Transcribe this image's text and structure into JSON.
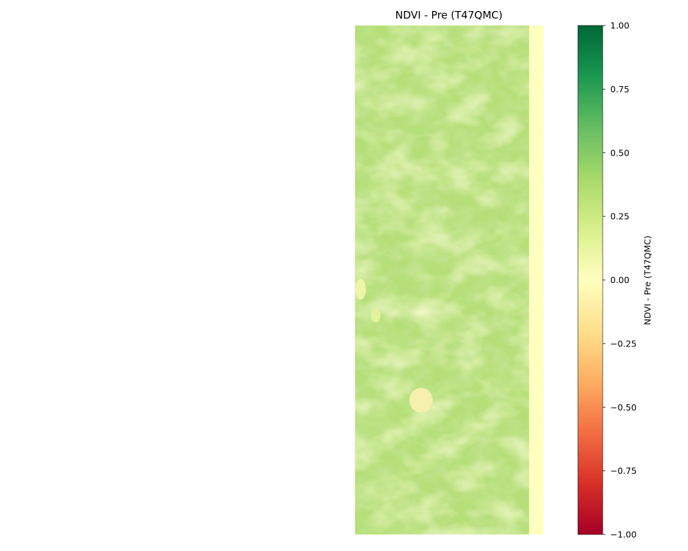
{
  "chart_data": {
    "type": "heatmap",
    "title": "NDVI - Pre (T47QMC)",
    "colorbar": {
      "label": "NDVI - Pre (T47QMC)",
      "colormap": "RdYlGn",
      "vmin": -1.0,
      "vmax": 1.0,
      "ticks": [
        1.0,
        0.75,
        0.5,
        0.25,
        0.0,
        -0.25,
        -0.5,
        -0.75,
        -1.0
      ],
      "tick_labels": [
        "1.00",
        "0.75",
        "0.50",
        "0.25",
        "0.00",
        "−0.25",
        "−0.50",
        "−0.75",
        "−1.00"
      ],
      "colors": [
        "#a50026",
        "#d73027",
        "#f46d43",
        "#fdae61",
        "#fee08b",
        "#ffffbf",
        "#d9ef8b",
        "#a6d96a",
        "#66bd63",
        "#1a9850",
        "#006837"
      ]
    },
    "raster": {
      "dominant_ndvi": 0.35,
      "ndvi_range": [
        0.1,
        0.55
      ],
      "right_edge_strip_ndvi": 0.0,
      "axes": "off"
    }
  }
}
